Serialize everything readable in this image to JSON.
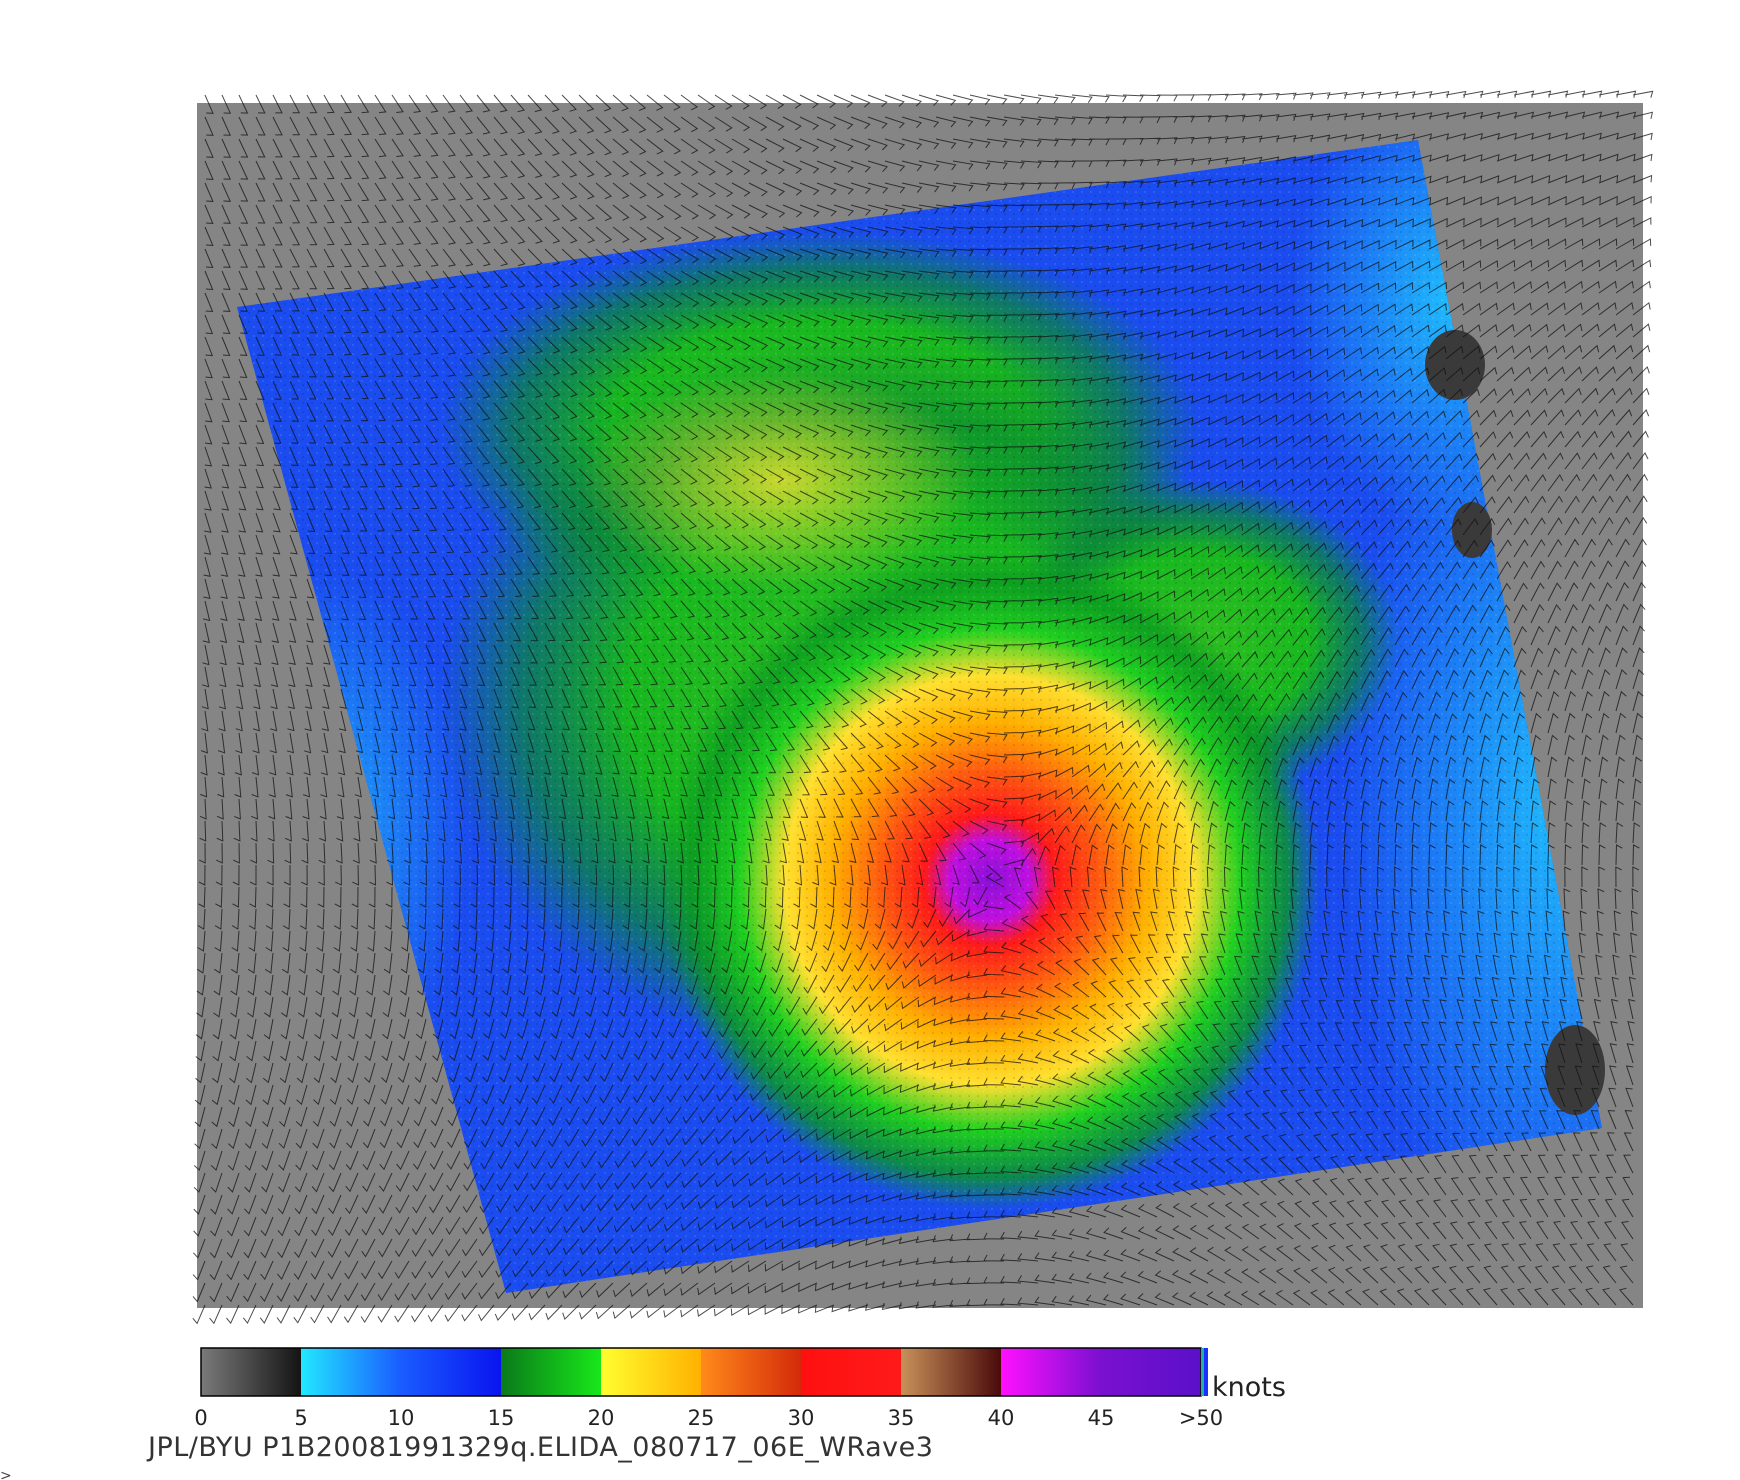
{
  "caption": "JPL/BYU  P1B20081991329q.ELIDA_080717_06E_WRave3",
  "chart_data": {
    "type": "heatmap",
    "title": "",
    "subtitle": "",
    "units": "knots",
    "colorbar": {
      "tick_labels": [
        "0",
        "5",
        "10",
        "15",
        "20",
        "25",
        "30",
        "35",
        "40",
        "45",
        ">50"
      ],
      "tick_values": [
        0,
        5,
        10,
        15,
        20,
        25,
        30,
        35,
        40,
        45,
        50
      ],
      "bins": [
        {
          "range": [
            0,
            5
          ],
          "colors": [
            "#7a7a7a",
            "#141414"
          ]
        },
        {
          "range": [
            5,
            15
          ],
          "colors": [
            "#22e8ff",
            "#1a5cff",
            "#0a14f0"
          ]
        },
        {
          "range": [
            15,
            20
          ],
          "colors": [
            "#0a7a1a",
            "#18e81a"
          ]
        },
        {
          "range": [
            20,
            25
          ],
          "colors": [
            "#ffff30",
            "#ffb000"
          ]
        },
        {
          "range": [
            25,
            30
          ],
          "colors": [
            "#ff8a1a",
            "#d42a0a"
          ]
        },
        {
          "range": [
            30,
            35
          ],
          "colors": [
            "#ff1010",
            "#ff1a1a"
          ]
        },
        {
          "range": [
            35,
            40
          ],
          "colors": [
            "#c8905a",
            "#4a0a0a"
          ]
        },
        {
          "range": [
            40,
            50
          ],
          "colors": [
            "#ff10ff",
            "#7a10d0",
            "#5a10c8"
          ]
        }
      ]
    },
    "background_color": "#858585",
    "swath_background_color": "#1a4cf0",
    "storm_center_speed": ">50",
    "wind_barbs": true,
    "grid": false
  }
}
